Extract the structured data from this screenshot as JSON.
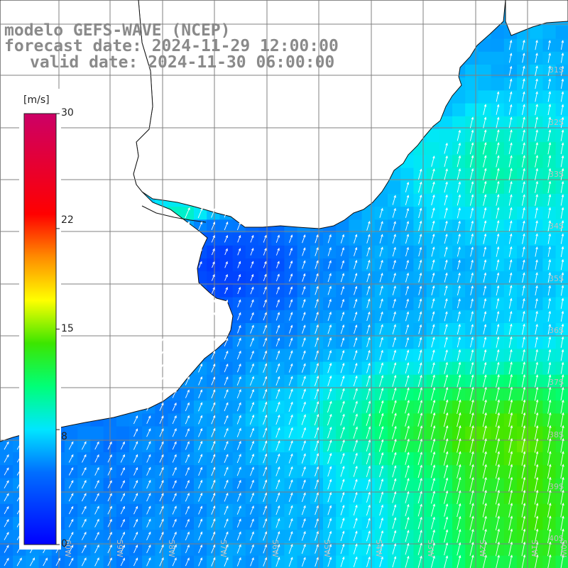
{
  "title": {
    "line1": "modelo GEFS-WAVE (NCEP)",
    "line2": "forecast date: 2024-11-29 12:00:00",
    "line3": "valid date: 2024-11-30 06:00:00"
  },
  "colorbar": {
    "unit": "[m/s]",
    "min": 0,
    "max": 30,
    "ticks": [
      "0",
      "8",
      "15",
      "22",
      "30"
    ],
    "tick_values": [
      0,
      8,
      15,
      22,
      30
    ],
    "colors": [
      "#0000ff",
      "#00aaff",
      "#00ffff",
      "#00ff00",
      "#ffff00",
      "#ff8800",
      "#ff0000",
      "#cc0066"
    ]
  },
  "map": {
    "lon_labels": [
      "60W",
      "59W",
      "58W",
      "57W",
      "56W",
      "55W",
      "54W",
      "53W",
      "52W",
      "51W",
      "50W"
    ],
    "lat_labels": [
      "31S",
      "32S",
      "33S",
      "34S",
      "35S",
      "36S",
      "37S",
      "38S",
      "39S",
      "40S"
    ],
    "land_color": "#ffffff",
    "grid_color": "#808080",
    "arrow_color": "#ffffff"
  }
}
